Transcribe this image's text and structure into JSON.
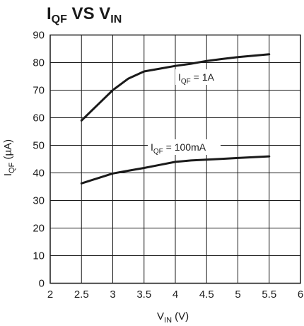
{
  "chart_data": {
    "type": "line",
    "title": {
      "main": "I",
      "sub1": "QF",
      "mid": " VS V",
      "sub2": "IN"
    },
    "xlabel": {
      "main": "V",
      "sub": "IN",
      "rest": " (V)"
    },
    "ylabel": {
      "main": "I",
      "sub": "QF",
      "rest": " (µA)"
    },
    "xlim": [
      2,
      6
    ],
    "ylim": [
      0,
      90
    ],
    "xticks": [
      "2",
      "2.5",
      "3",
      "3.5",
      "4",
      "4.5",
      "5",
      "5.5",
      "6"
    ],
    "yticks": [
      "0",
      "10",
      "20",
      "30",
      "40",
      "50",
      "60",
      "70",
      "80",
      "90"
    ],
    "grid": true,
    "series": [
      {
        "name": {
          "main": "I",
          "sub": "QF",
          "rest": " = 1A"
        },
        "x": [
          2.5,
          2.75,
          3.0,
          3.25,
          3.5,
          3.75,
          4.0,
          4.25,
          4.5,
          4.75,
          5.0,
          5.25,
          5.5
        ],
        "y": [
          59,
          64.5,
          70,
          74.2,
          76.8,
          77.8,
          78.8,
          79.6,
          80.6,
          81.3,
          82.0,
          82.5,
          83.0
        ]
      },
      {
        "name": {
          "main": "I",
          "sub": "QF",
          "rest": " = 100mA"
        },
        "x": [
          2.5,
          2.75,
          3.0,
          3.25,
          3.5,
          3.75,
          4.0,
          4.25,
          4.5,
          4.75,
          5.0,
          5.25,
          5.5
        ],
        "y": [
          36.2,
          38,
          39.8,
          40.8,
          41.8,
          42.9,
          44.0,
          44.5,
          44.8,
          45.1,
          45.4,
          45.7,
          46.0
        ]
      }
    ]
  }
}
